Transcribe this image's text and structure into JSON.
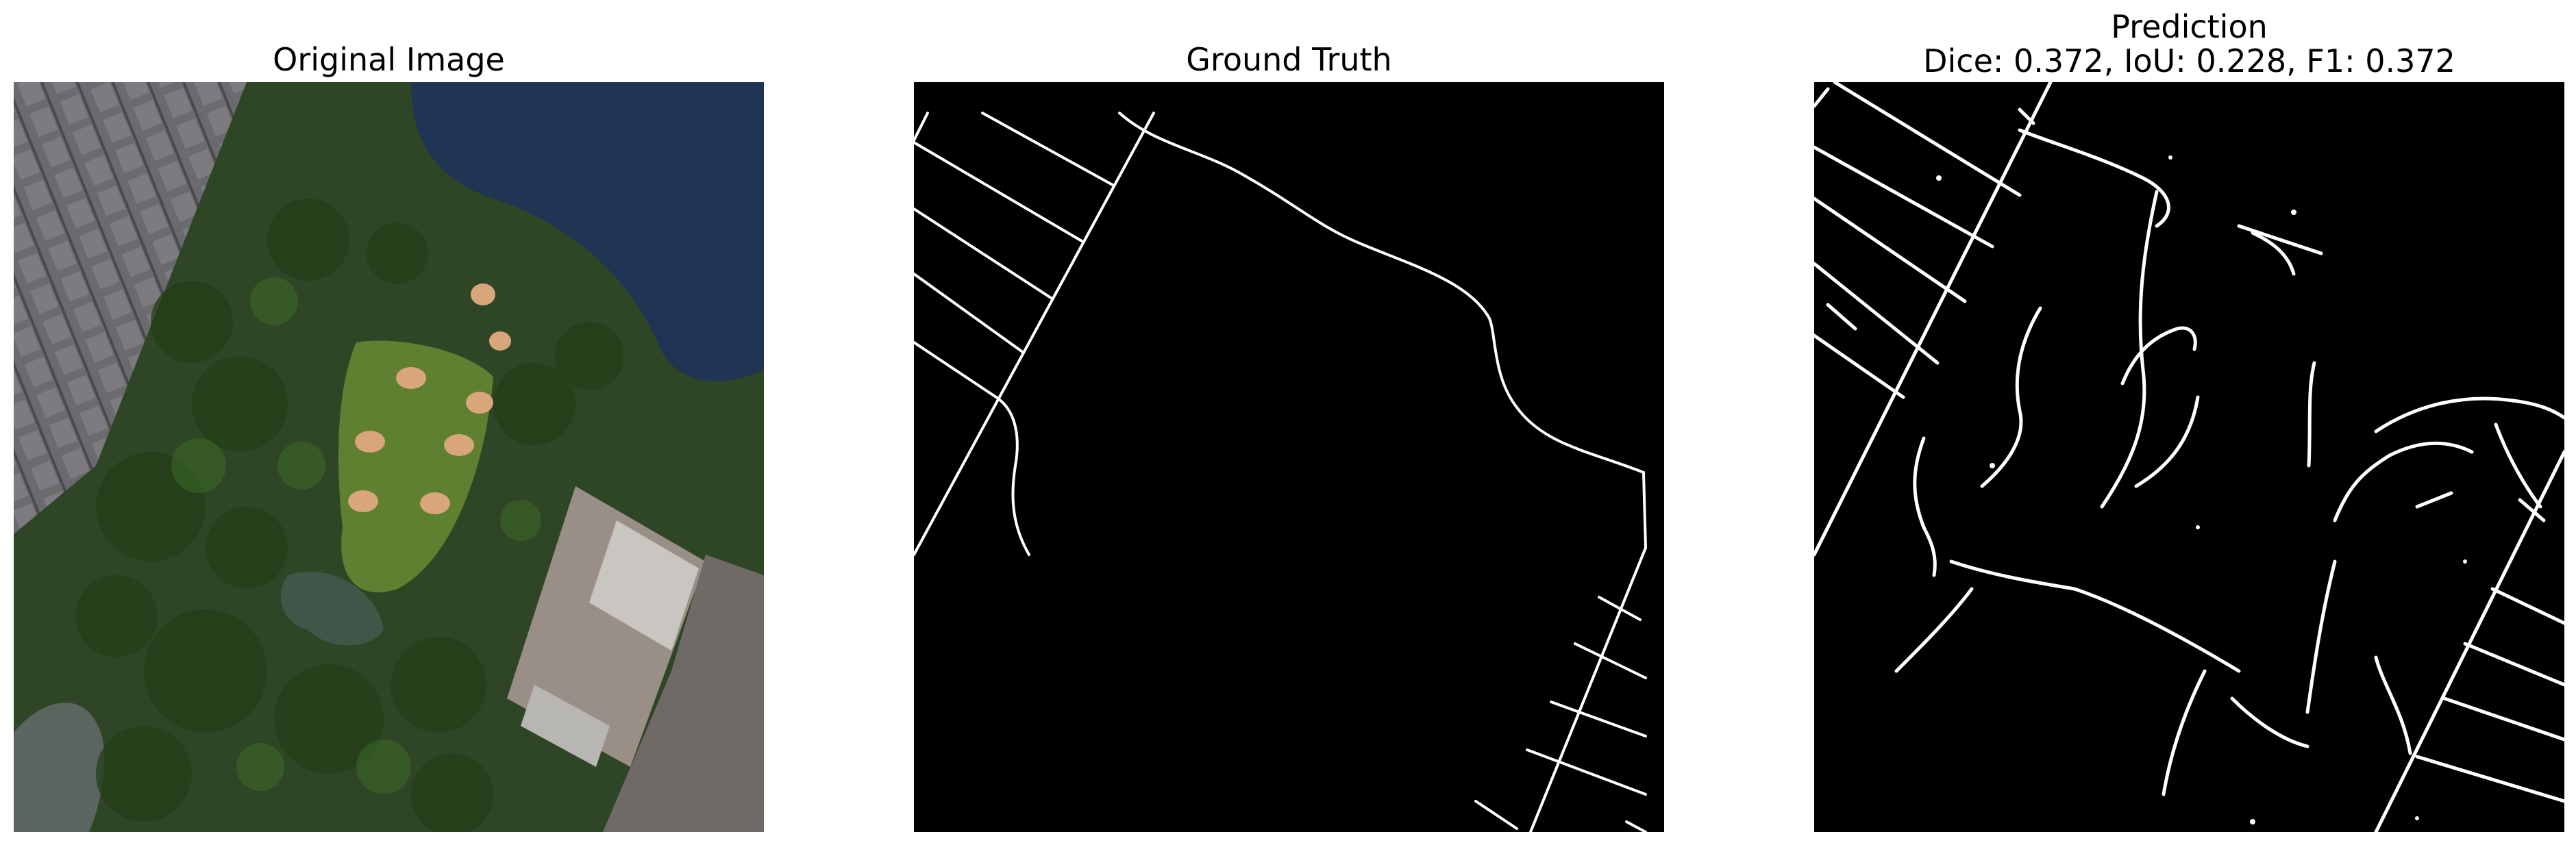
{
  "panels": [
    {
      "title": "Original Image"
    },
    {
      "title": "Ground Truth"
    },
    {
      "title_line1": "Prediction",
      "title_line2": "Dice: 0.372, IoU: 0.228, F1: 0.372"
    }
  ],
  "colors": {
    "mask_bg": "#000000",
    "road": "#ffffff",
    "water": "#1f3553",
    "field": "#5f7f31",
    "tree": "#2a4a1c"
  }
}
